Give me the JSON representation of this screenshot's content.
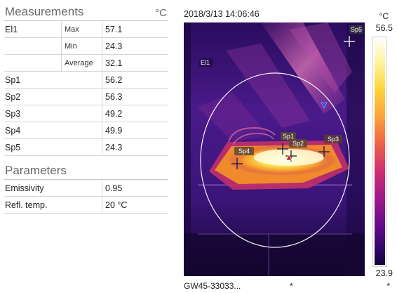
{
  "measurements": {
    "title": "Measurements",
    "unit": "°C",
    "rows": [
      {
        "name": "El1",
        "stat": "Max",
        "value": "57.1"
      },
      {
        "name": "",
        "stat": "Min",
        "value": "24.3"
      },
      {
        "name": "",
        "stat": "Average",
        "value": "32.1"
      },
      {
        "name": "Sp1",
        "stat": "",
        "value": "56.2"
      },
      {
        "name": "Sp2",
        "stat": "",
        "value": "56.3"
      },
      {
        "name": "Sp3",
        "stat": "",
        "value": "49.2"
      },
      {
        "name": "Sp4",
        "stat": "",
        "value": "49.9"
      },
      {
        "name": "Sp5",
        "stat": "",
        "value": "24.3"
      }
    ]
  },
  "parameters": {
    "title": "Parameters",
    "rows": [
      {
        "name": "Emissivity",
        "value": "0.95"
      },
      {
        "name": "Refl. temp.",
        "value": "20 °C"
      }
    ]
  },
  "thermal": {
    "timestamp": "2018/3/13 14:06:46",
    "unit": "°C",
    "scale_max": "56.5",
    "scale_min": "23.9",
    "camera_id": "GW45-33033...",
    "marker_left": "*",
    "marker_right": "*",
    "labels": {
      "el1": "El1",
      "sp1": "Sp1",
      "sp2": "Sp2",
      "sp3": "Sp3",
      "sp4": "Sp4",
      "sp5": "Sp5"
    },
    "palette": "iron",
    "colors": {
      "hot": "#ffe85a",
      "warm": "#f08a2c",
      "cool": "#5a1fa0",
      "cold": "#1a0a4a"
    }
  }
}
